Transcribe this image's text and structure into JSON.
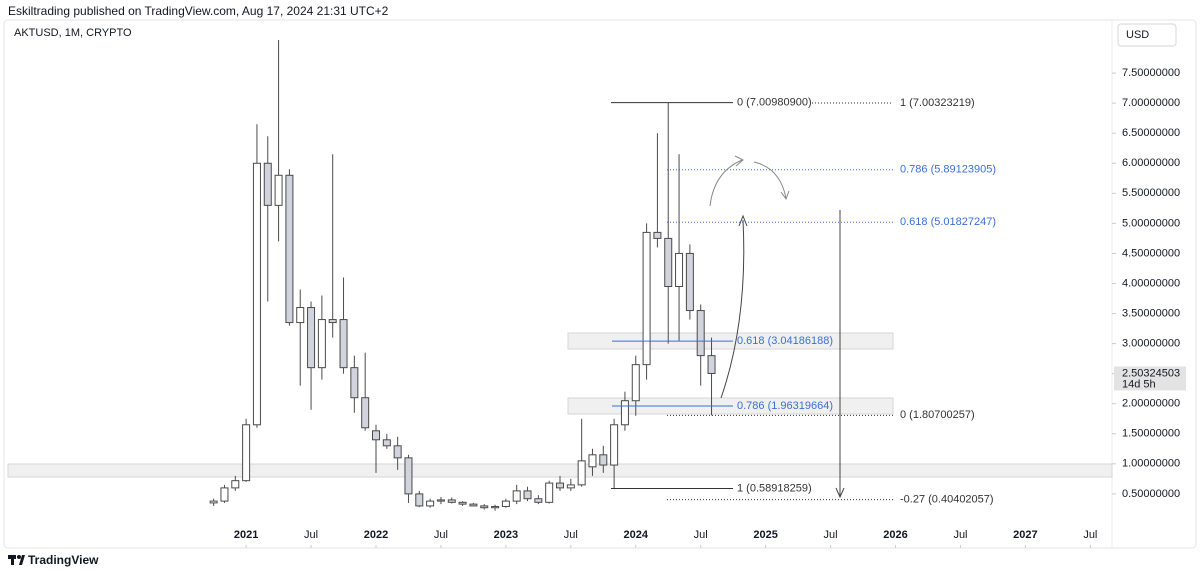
{
  "header": {
    "publisher": "Eskiltrading published on TradingView.com, Aug 17, 2024 21:31 UTC+2"
  },
  "footer": {
    "brand": "TradingView"
  },
  "chart_data": {
    "type": "candlestick",
    "title": "AKTUSD, 1M, CRYPTO",
    "currency": "USD",
    "x": [
      "2020-10",
      "2020-11",
      "2020-12",
      "2021-01",
      "2021-02",
      "2021-03",
      "2021-04",
      "2021-05",
      "2021-06",
      "2021-07",
      "2021-08",
      "2021-09",
      "2021-10",
      "2021-11",
      "2021-12",
      "2022-01",
      "2022-02",
      "2022-03",
      "2022-04",
      "2022-05",
      "2022-06",
      "2022-07",
      "2022-08",
      "2022-09",
      "2022-10",
      "2022-11",
      "2022-12",
      "2023-01",
      "2023-02",
      "2023-03",
      "2023-04",
      "2023-05",
      "2023-06",
      "2023-07",
      "2023-08",
      "2023-09",
      "2023-10",
      "2023-11",
      "2023-12",
      "2024-01",
      "2024-02",
      "2024-03",
      "2024-04",
      "2024-05",
      "2024-06",
      "2024-07",
      "2024-08"
    ],
    "open": [
      0.35,
      0.38,
      0.6,
      0.72,
      1.65,
      6.0,
      5.3,
      5.8,
      3.35,
      3.6,
      2.6,
      3.4,
      3.4,
      2.6,
      2.1,
      1.55,
      1.4,
      1.3,
      1.1,
      0.5,
      0.3,
      0.38,
      0.4,
      0.36,
      0.33,
      0.3,
      0.27,
      0.29,
      0.38,
      0.55,
      0.42,
      0.36,
      0.68,
      0.6,
      0.65,
      0.95,
      1.15,
      0.98,
      1.65,
      2.05,
      2.65,
      4.85,
      4.75,
      3.95,
      4.5,
      3.55,
      2.8
    ],
    "high": [
      0.42,
      0.65,
      0.8,
      1.75,
      6.65,
      6.45,
      8.05,
      5.9,
      3.9,
      3.7,
      3.8,
      6.15,
      4.1,
      2.8,
      2.85,
      1.65,
      1.5,
      1.45,
      1.15,
      0.55,
      0.42,
      0.45,
      0.44,
      0.38,
      0.35,
      0.33,
      0.32,
      0.42,
      0.65,
      0.62,
      0.48,
      0.72,
      0.8,
      0.75,
      1.75,
      1.25,
      1.3,
      1.75,
      2.2,
      2.8,
      5.0,
      6.5,
      7.01,
      6.15,
      4.65,
      3.65,
      3.1
    ],
    "low": [
      0.3,
      0.35,
      0.55,
      0.7,
      1.6,
      3.7,
      4.7,
      3.3,
      2.3,
      1.9,
      2.4,
      3.1,
      2.5,
      1.85,
      1.55,
      0.85,
      1.25,
      0.9,
      0.35,
      0.28,
      0.27,
      0.33,
      0.34,
      0.3,
      0.29,
      0.24,
      0.22,
      0.27,
      0.33,
      0.38,
      0.33,
      0.34,
      0.55,
      0.55,
      0.62,
      0.8,
      0.85,
      0.589,
      1.55,
      1.8,
      2.4,
      4.6,
      3.0,
      3.05,
      3.4,
      2.3,
      1.807
    ],
    "close": [
      0.38,
      0.6,
      0.72,
      1.65,
      6.0,
      5.3,
      5.8,
      3.35,
      3.6,
      2.6,
      3.4,
      3.35,
      2.6,
      2.1,
      1.6,
      1.4,
      1.3,
      1.1,
      0.5,
      0.3,
      0.38,
      0.4,
      0.36,
      0.33,
      0.3,
      0.27,
      0.29,
      0.38,
      0.55,
      0.42,
      0.36,
      0.68,
      0.6,
      0.65,
      1.05,
      1.15,
      0.98,
      1.65,
      2.05,
      2.65,
      4.85,
      4.75,
      3.95,
      4.5,
      3.55,
      2.8,
      2.50324503
    ],
    "up_color": "#ffffff",
    "down_color": "#d1d4dc",
    "border_color": "#4a4a4a",
    "xlim": [
      "2019-03",
      "2027-09"
    ],
    "ylim": [
      -0.4,
      8.35
    ],
    "xticks": [
      {
        "value": "2021-01",
        "label": "2021"
      },
      {
        "value": "2021-07",
        "label": "Jul"
      },
      {
        "value": "2022-01",
        "label": "2022"
      },
      {
        "value": "2022-07",
        "label": "Jul"
      },
      {
        "value": "2023-01",
        "label": "2023"
      },
      {
        "value": "2023-07",
        "label": "Jul"
      },
      {
        "value": "2024-01",
        "label": "2024"
      },
      {
        "value": "2024-07",
        "label": "Jul"
      },
      {
        "value": "2025-01",
        "label": "2025"
      },
      {
        "value": "2025-07",
        "label": "Jul"
      },
      {
        "value": "2026-01",
        "label": "2026"
      },
      {
        "value": "2026-07",
        "label": "Jul"
      },
      {
        "value": "2027-01",
        "label": "2027"
      },
      {
        "value": "2027-07",
        "label": "Jul"
      }
    ],
    "yticks": [
      {
        "value": 0.5,
        "label": "0.50000000"
      },
      {
        "value": 1,
        "label": "1.00000000"
      },
      {
        "value": 1.5,
        "label": "1.50000000"
      },
      {
        "value": 2,
        "label": "2.00000000"
      },
      {
        "value": 2.5,
        "label": "2.50000000"
      },
      {
        "value": 3,
        "label": "3.00000000"
      },
      {
        "value": 3.5,
        "label": "3.50000000"
      },
      {
        "value": 4,
        "label": "4.00000000"
      },
      {
        "value": 4.5,
        "label": "4.50000000"
      },
      {
        "value": 5,
        "label": "5.00000000"
      },
      {
        "value": 5.5,
        "label": "5.50000000"
      },
      {
        "value": 6,
        "label": "6.00000000"
      },
      {
        "value": 6.5,
        "label": "6.50000000"
      },
      {
        "value": 7,
        "label": "7.00000000"
      },
      {
        "value": 7.5,
        "label": "7.50000000"
      }
    ],
    "last_price": 2.50324503,
    "countdown": "14d 5h",
    "annotations": [
      {
        "text": "0 (7.00980900)",
        "value": 7.009809,
        "color": "#333333"
      },
      {
        "text": "1 (7.00323219)",
        "value": 7.00323219,
        "color": "#333333"
      },
      {
        "text": "0.786 (5.89123905)",
        "value": 5.89123905,
        "color": "#3a6fd8"
      },
      {
        "text": "0.618 (5.01827247)",
        "value": 5.01827247,
        "color": "#3a6fd8"
      },
      {
        "text": "0.618 (3.04186188)",
        "value": 3.04186188,
        "color": "#3a6fd8"
      },
      {
        "text": "0.786 (1.96319664)",
        "value": 1.96319664,
        "color": "#3a6fd8"
      },
      {
        "text": "0 (1.80700257)",
        "value": 1.80700257,
        "color": "#333333"
      },
      {
        "text": "1 (0.58918259)",
        "value": 0.58918259,
        "color": "#333333"
      },
      {
        "text": "-0.27 (0.40402057)",
        "value": 0.40402057,
        "color": "#333333"
      }
    ]
  }
}
